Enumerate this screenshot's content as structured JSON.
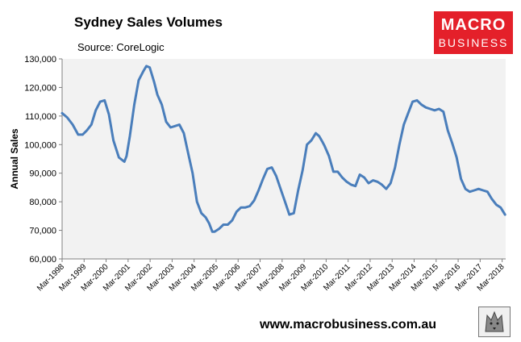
{
  "header": {
    "title": "Sydney Sales Volumes",
    "source": "Source: CoreLogic"
  },
  "logo": {
    "line1": "MACRO",
    "line2": "BUSINESS",
    "color": "#e4202a"
  },
  "footer": {
    "website": "www.macrobusiness.com.au"
  },
  "colors": {
    "line": "#4a7ebb",
    "plot_bg": "#f2f2f2",
    "axis": "#808080"
  },
  "chart_data": {
    "type": "line",
    "title": "Sydney Sales Volumes",
    "xlabel": "",
    "ylabel": "Annual Sales",
    "ylim": [
      60000,
      130000
    ],
    "yticks": [
      60000,
      70000,
      80000,
      90000,
      100000,
      110000,
      120000,
      130000
    ],
    "ytick_labels": [
      "60,000",
      "70,000",
      "80,000",
      "90,000",
      "100,000",
      "110,000",
      "120,000",
      "130,000"
    ],
    "xlim": [
      1998.17,
      2018.33
    ],
    "xticks": [
      1998.17,
      1999.17,
      2000.17,
      2001.17,
      2002.17,
      2003.17,
      2004.17,
      2005.17,
      2006.17,
      2007.17,
      2008.17,
      2009.17,
      2010.17,
      2011.17,
      2012.17,
      2013.17,
      2014.17,
      2015.17,
      2016.17,
      2017.17,
      2018.17
    ],
    "xtick_labels": [
      "Mar-1998",
      "Mar-1999",
      "Mar-2000",
      "Mar-2001",
      "Mar-2002",
      "Mar-2003",
      "Mar-2004",
      "Mar-2005",
      "Mar-2006",
      "Mar-2007",
      "Mar-2008",
      "Mar-2009",
      "Mar-2010",
      "Mar-2011",
      "Mar-2012",
      "Mar-2013",
      "Mar-2014",
      "Mar-2015",
      "Mar-2016",
      "Mar-2017",
      "Mar-2018"
    ],
    "grid": false,
    "series": [
      {
        "name": "Annual Sales",
        "x": [
          1998.17,
          1998.4,
          1998.65,
          1998.9,
          1999.1,
          1999.3,
          1999.5,
          1999.7,
          1999.9,
          2000.1,
          2000.3,
          2000.5,
          2000.75,
          2001.0,
          2001.1,
          2001.25,
          2001.45,
          2001.65,
          2001.85,
          2002.0,
          2002.15,
          2002.35,
          2002.5,
          2002.7,
          2002.9,
          2003.1,
          2003.3,
          2003.5,
          2003.7,
          2003.9,
          2004.1,
          2004.3,
          2004.5,
          2004.7,
          2004.85,
          2005.0,
          2005.1,
          2005.3,
          2005.5,
          2005.7,
          2005.9,
          2006.1,
          2006.3,
          2006.5,
          2006.7,
          2006.9,
          2007.1,
          2007.3,
          2007.5,
          2007.7,
          2007.9,
          2008.1,
          2008.3,
          2008.5,
          2008.7,
          2008.9,
          2009.1,
          2009.3,
          2009.5,
          2009.7,
          2009.85,
          2010.0,
          2010.1,
          2010.3,
          2010.5,
          2010.7,
          2010.9,
          2011.1,
          2011.3,
          2011.5,
          2011.7,
          2011.9,
          2012.1,
          2012.3,
          2012.5,
          2012.7,
          2012.9,
          2013.1,
          2013.3,
          2013.5,
          2013.7,
          2013.9,
          2014.1,
          2014.3,
          2014.5,
          2014.7,
          2014.9,
          2015.1,
          2015.3,
          2015.5,
          2015.7,
          2015.9,
          2016.1,
          2016.3,
          2016.5,
          2016.7,
          2016.9,
          2017.1,
          2017.3,
          2017.5,
          2017.7,
          2017.9,
          2018.1,
          2018.3
        ],
        "values": [
          111000,
          109500,
          107000,
          103500,
          103500,
          105000,
          107000,
          112000,
          115000,
          115500,
          110500,
          101500,
          95500,
          94000,
          96000,
          103000,
          114000,
          122500,
          125500,
          127500,
          127000,
          122000,
          117500,
          114000,
          108000,
          106000,
          106500,
          107000,
          104000,
          97000,
          90000,
          80000,
          76000,
          74500,
          72500,
          69500,
          69500,
          70500,
          72000,
          72000,
          73500,
          76500,
          78000,
          78000,
          78500,
          80500,
          84000,
          88000,
          91500,
          92000,
          89000,
          84500,
          80000,
          75500,
          76000,
          84000,
          91000,
          100000,
          101500,
          104000,
          103000,
          101000,
          99500,
          96000,
          90500,
          90500,
          88500,
          87000,
          86000,
          85500,
          89500,
          88500,
          86500,
          87500,
          87000,
          86000,
          84500,
          86500,
          92000,
          100000,
          107000,
          111000,
          115000,
          115500,
          114000,
          113000,
          112500,
          112000,
          112500,
          111500,
          105000,
          100500,
          95500,
          88000,
          84500,
          83500,
          84000,
          84500,
          84000,
          83500,
          81000,
          79000,
          78000,
          75500
        ]
      }
    ]
  }
}
